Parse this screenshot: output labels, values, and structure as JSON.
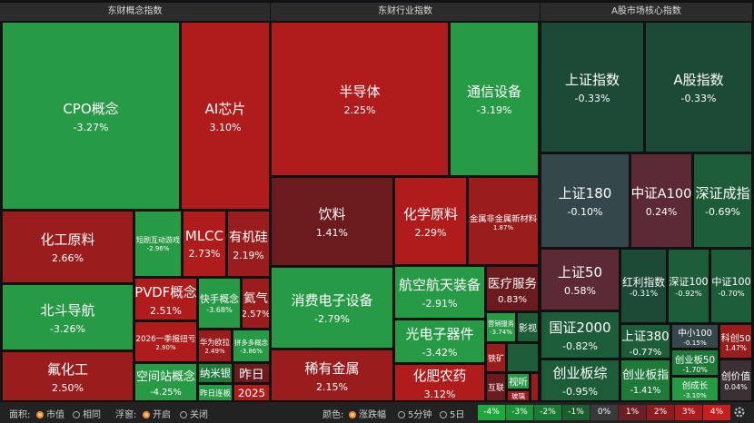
{
  "panels": [
    {
      "title": "东财概念指数",
      "tiles": [
        {
          "name": "CPO概念",
          "change": "-3.27%"
        },
        {
          "name": "AI芯片",
          "change": "3.10%"
        },
        {
          "name": "化工原料",
          "change": "2.66%"
        },
        {
          "name": "短剧互动游戏",
          "change": "-2.96%"
        },
        {
          "name": "MLCC",
          "change": "2.73%"
        },
        {
          "name": "有机硅",
          "change": "2.19%"
        },
        {
          "name": "北斗导航",
          "change": "-3.26%"
        },
        {
          "name": "PVDF概念",
          "change": "2.51%"
        },
        {
          "name": "快手概念",
          "change": "-3.68%"
        },
        {
          "name": "氦气",
          "change": "2.57%"
        },
        {
          "name": "2026一季报扭亏",
          "change": "2.90%"
        },
        {
          "name": "华为欧拉",
          "change": "2.49%"
        },
        {
          "name": "拼多多概念",
          "change": "-3.86%"
        },
        {
          "name": "氟化工",
          "change": "2.50%"
        },
        {
          "name": "空间站概念",
          "change": "-4.25%"
        },
        {
          "name": "纳米银"
        },
        {
          "name": "昨日连板"
        },
        {
          "name": "昨日"
        },
        {
          "name": "2025"
        }
      ]
    },
    {
      "title": "东财行业指数",
      "tiles": [
        {
          "name": "半导体",
          "change": "2.25%"
        },
        {
          "name": "通信设备",
          "change": "-3.19%"
        },
        {
          "name": "饮料",
          "change": "1.41%"
        },
        {
          "name": "化学原料",
          "change": "2.29%"
        },
        {
          "name": "金属非金属新材料",
          "change": "1.87%"
        },
        {
          "name": "消费电子设备",
          "change": "-2.79%"
        },
        {
          "name": "航空航天装备",
          "change": "-2.91%"
        },
        {
          "name": "医疗服务",
          "change": "0.83%"
        },
        {
          "name": "光电子器件",
          "change": "-3.42%"
        },
        {
          "name": "营销服务",
          "change": "-3.74%"
        },
        {
          "name": "影视"
        },
        {
          "name": "稀有金属",
          "change": "2.15%"
        },
        {
          "name": "化肥农药",
          "change": "3.12%"
        },
        {
          "name": "铁矿"
        },
        {
          "name": "互联"
        },
        {
          "name": "视听"
        },
        {
          "name": "玻璃"
        }
      ]
    },
    {
      "title": "A股市场核心指数",
      "tiles": [
        {
          "name": "上证指数",
          "change": "-0.33%"
        },
        {
          "name": "A股指数",
          "change": "-0.33%"
        },
        {
          "name": "上证180",
          "change": "-0.10%"
        },
        {
          "name": "中证A100",
          "change": "0.24%"
        },
        {
          "name": "深证成指",
          "change": "-0.69%"
        },
        {
          "name": "上证50",
          "change": "0.58%"
        },
        {
          "name": "红利指数",
          "change": "-0.31%"
        },
        {
          "name": "深证100",
          "change": "-0.92%"
        },
        {
          "name": "中证100",
          "change": "-0.70%"
        },
        {
          "name": "国证2000",
          "change": "-0.82%"
        },
        {
          "name": "创业板综",
          "change": "-0.95%"
        },
        {
          "name": "上证380",
          "change": "-0.77%"
        },
        {
          "name": "创业板指",
          "change": "-1.41%"
        },
        {
          "name": "中小100",
          "change": "-0.15%"
        },
        {
          "name": "创业板50",
          "change": "-1.70%"
        },
        {
          "name": "创成长",
          "change": "-3.10%"
        },
        {
          "name": "科创50",
          "change": "1.47%"
        },
        {
          "name": "创价值",
          "change": "0.04%"
        }
      ]
    }
  ],
  "toolbar": {
    "area_label": "面积:",
    "area_options": [
      "市值",
      "相同"
    ],
    "float_label": "浮窗:",
    "float_options": [
      "开启",
      "关闭"
    ],
    "color_label": "颜色:",
    "color_options": [
      "涨跌幅",
      "5分钟",
      "5日"
    ]
  },
  "legend": [
    "-4%",
    "-3%",
    "-2%",
    "-1%",
    "0%",
    "1%",
    "2%",
    "3%",
    "4%"
  ]
}
